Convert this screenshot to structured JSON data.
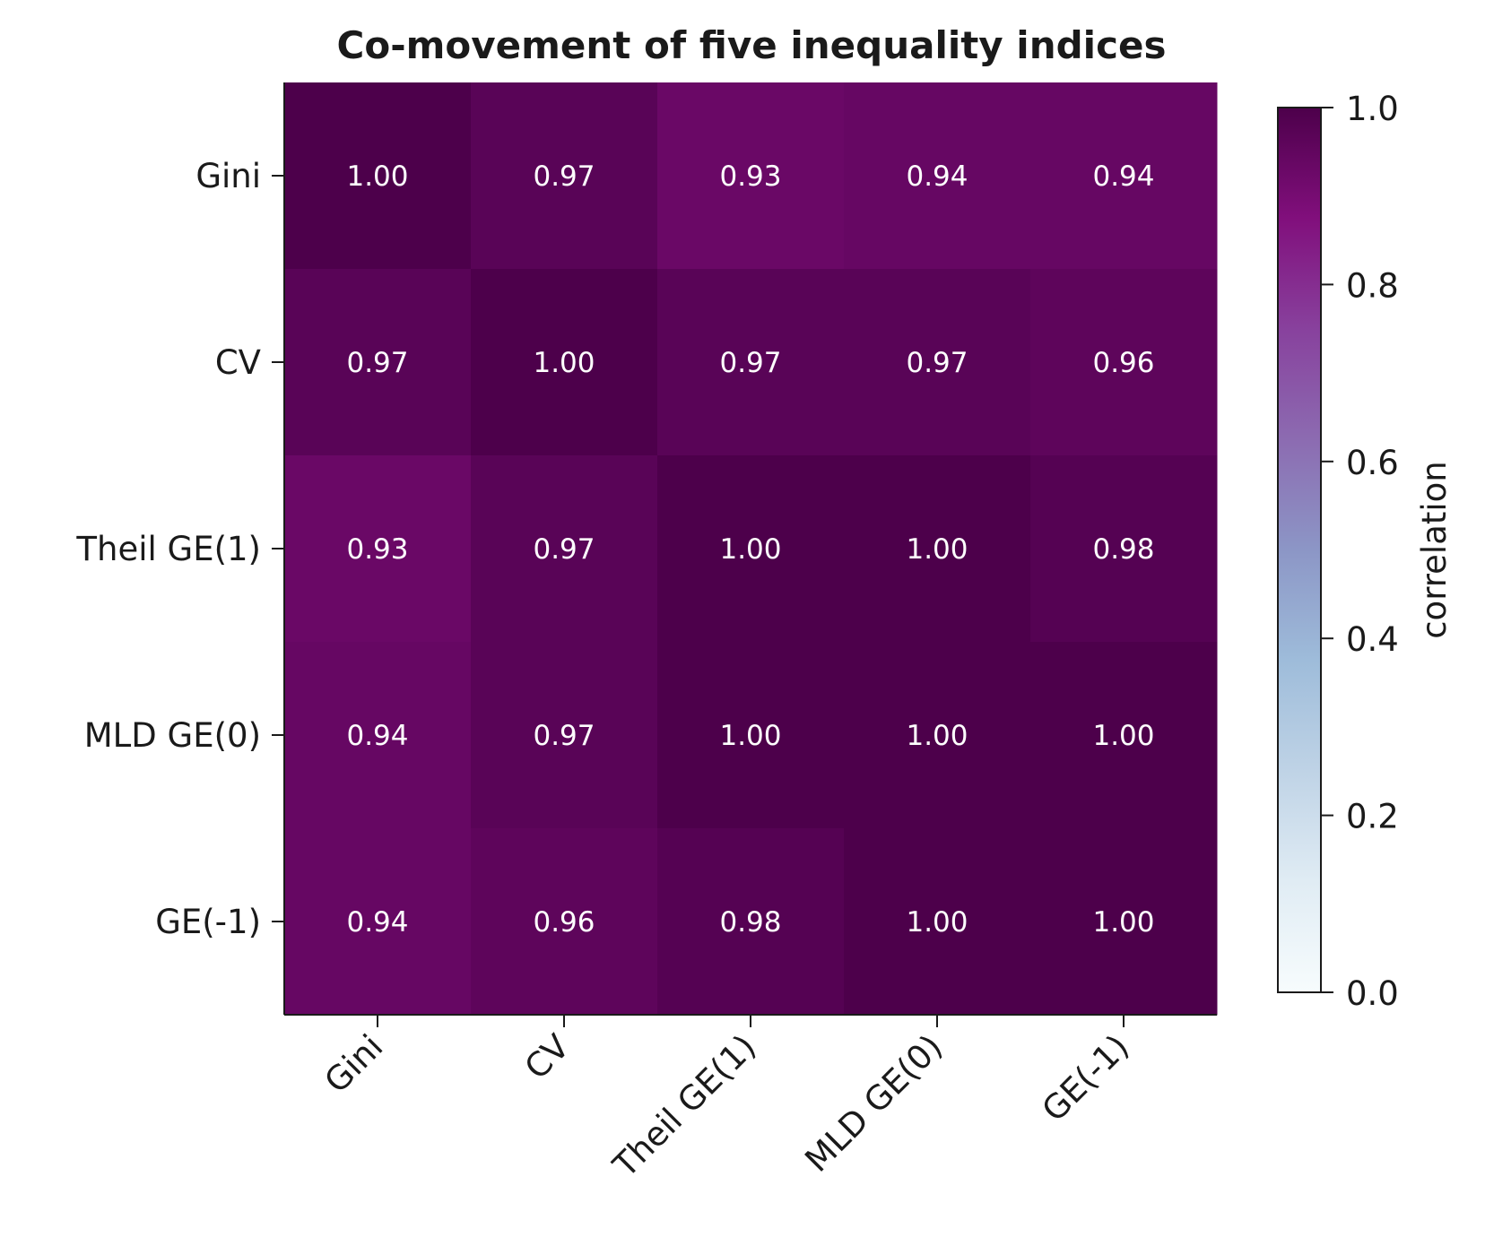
{
  "chart_data": {
    "type": "heatmap",
    "title": "Co-movement of five inequality indices",
    "rows": [
      "Gini",
      "CV",
      "Theil GE(1)",
      "MLD GE(0)",
      "GE(-1)"
    ],
    "columns": [
      "Gini",
      "CV",
      "Theil GE(1)",
      "MLD GE(0)",
      "GE(-1)"
    ],
    "values": [
      [
        1.0,
        0.97,
        0.93,
        0.94,
        0.94
      ],
      [
        0.97,
        1.0,
        0.97,
        0.97,
        0.96
      ],
      [
        0.93,
        0.97,
        1.0,
        1.0,
        0.98
      ],
      [
        0.94,
        0.97,
        1.0,
        1.0,
        1.0
      ],
      [
        0.94,
        0.96,
        0.98,
        1.0,
        1.0
      ]
    ],
    "value_format": "2 decimals",
    "colorbar": {
      "label": "correlation",
      "range": [
        0.0,
        1.0
      ],
      "ticks": [
        "0.0",
        "0.2",
        "0.4",
        "0.6",
        "0.8",
        "1.0"
      ],
      "colormap": "BuPu",
      "colors": [
        "#f7fcfd",
        "#e0ecf4",
        "#bfd3e6",
        "#9ebcda",
        "#8c96c6",
        "#8c6bb1",
        "#88419d",
        "#810f7c",
        "#4d004b"
      ]
    },
    "xtick_rotation": "45 degrees"
  }
}
